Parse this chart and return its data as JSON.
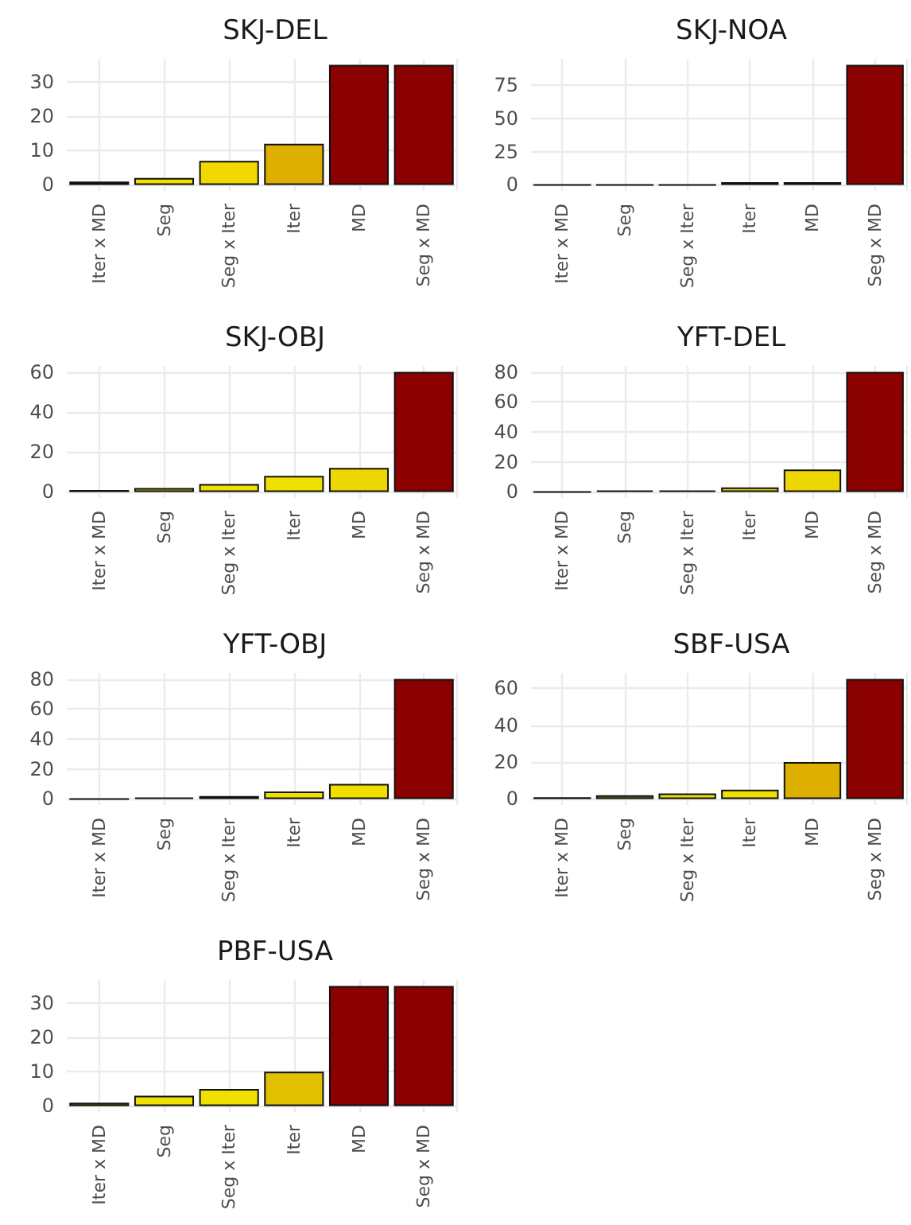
{
  "chart_data": [
    {
      "type": "bar",
      "title": "SKJ-DEL",
      "categories": [
        "Iter x MD",
        "Seg",
        "Seg x Iter",
        "Iter",
        "MD",
        "Seg x MD"
      ],
      "values": [
        1,
        2,
        7,
        12,
        35,
        35
      ],
      "colors": [
        "#111111",
        "#f0e000",
        "#f0d800",
        "#ddb000",
        "#8b0000",
        "#8b0000"
      ],
      "ylim": [
        -1.75,
        36.75
      ],
      "yticks": [
        0,
        10,
        20,
        30
      ],
      "grid": true
    },
    {
      "type": "bar",
      "title": "SKJ-NOA",
      "categories": [
        "Iter x MD",
        "Seg",
        "Seg x Iter",
        "Iter",
        "MD",
        "Seg x MD"
      ],
      "values": [
        0,
        0,
        0,
        2,
        2,
        90
      ],
      "colors": [
        "#111111",
        "#111111",
        "#111111",
        "#3a3a00",
        "#3a3a00",
        "#8b0000"
      ],
      "ylim": [
        -4.5,
        94.5
      ],
      "yticks": [
        0,
        25,
        50,
        75
      ],
      "grid": true
    },
    {
      "type": "bar",
      "title": "SKJ-OBJ",
      "categories": [
        "Iter x MD",
        "Seg",
        "Seg x Iter",
        "Iter",
        "MD",
        "Seg x MD"
      ],
      "values": [
        1,
        2,
        4,
        8,
        12,
        60
      ],
      "colors": [
        "#111111",
        "#c8b800",
        "#f0e000",
        "#f0e000",
        "#eed600",
        "#8b0000"
      ],
      "ylim": [
        -3,
        63
      ],
      "yticks": [
        0,
        20,
        40,
        60
      ],
      "grid": true
    },
    {
      "type": "bar",
      "title": "YFT-DEL",
      "categories": [
        "Iter x MD",
        "Seg",
        "Seg x Iter",
        "Iter",
        "MD",
        "Seg x MD"
      ],
      "values": [
        0,
        1,
        1,
        3,
        15,
        80
      ],
      "colors": [
        "#111111",
        "#111111",
        "#111111",
        "#e0d000",
        "#eed600",
        "#8b0000"
      ],
      "ylim": [
        -4,
        84
      ],
      "yticks": [
        0,
        20,
        40,
        60,
        80
      ],
      "grid": true
    },
    {
      "type": "bar",
      "title": "YFT-OBJ",
      "categories": [
        "Iter x MD",
        "Seg",
        "Seg x Iter",
        "Iter",
        "MD",
        "Seg x MD"
      ],
      "values": [
        0,
        1,
        2,
        5,
        10,
        80
      ],
      "colors": [
        "#111111",
        "#111111",
        "#111111",
        "#f0e000",
        "#f0e000",
        "#8b0000"
      ],
      "ylim": [
        -4,
        84
      ],
      "yticks": [
        0,
        20,
        40,
        60,
        80
      ],
      "grid": true
    },
    {
      "type": "bar",
      "title": "SBF-USA",
      "categories": [
        "Iter x MD",
        "Seg",
        "Seg x Iter",
        "Iter",
        "MD",
        "Seg x MD"
      ],
      "values": [
        1,
        2,
        3,
        5,
        20,
        65
      ],
      "colors": [
        "#111111",
        "#8a8000",
        "#f0e000",
        "#f0e000",
        "#ddb000",
        "#8b0000"
      ],
      "ylim": [
        -3.25,
        68.25
      ],
      "yticks": [
        0,
        20,
        40,
        60
      ],
      "grid": true
    },
    {
      "type": "bar",
      "title": "PBF-USA",
      "categories": [
        "Iter x MD",
        "Seg",
        "Seg x Iter",
        "Iter",
        "MD",
        "Seg x MD"
      ],
      "values": [
        1,
        3,
        5,
        10,
        35,
        35
      ],
      "colors": [
        "#a09000",
        "#f0e000",
        "#f0e000",
        "#e0c000",
        "#8b0000",
        "#8b0000"
      ],
      "ylim": [
        -1.75,
        36.75
      ],
      "yticks": [
        0,
        10,
        20,
        30
      ],
      "grid": true
    }
  ]
}
